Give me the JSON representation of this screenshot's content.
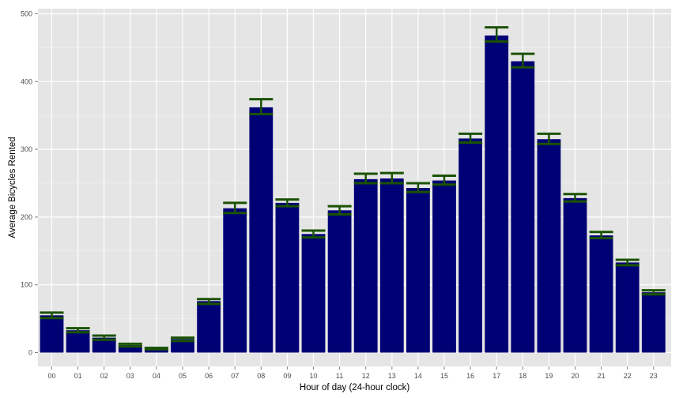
{
  "chart_data": {
    "type": "bar",
    "xlabel": "Hour of day (24-hour clock)",
    "ylabel": "Average Bicycles Rented",
    "ylim": [
      0,
      500
    ],
    "yticks": [
      0,
      100,
      200,
      300,
      400,
      500
    ],
    "categories": [
      "00",
      "01",
      "02",
      "03",
      "04",
      "05",
      "06",
      "07",
      "08",
      "09",
      "10",
      "11",
      "12",
      "13",
      "14",
      "15",
      "16",
      "17",
      "18",
      "19",
      "20",
      "21",
      "22",
      "23"
    ],
    "values": [
      55,
      33,
      22,
      11,
      6,
      20,
      76,
      213,
      362,
      221,
      175,
      210,
      256,
      257,
      243,
      254,
      316,
      468,
      430,
      315,
      228,
      173,
      133,
      89
    ],
    "error_low": [
      51,
      30,
      19,
      9,
      5,
      17,
      72,
      206,
      352,
      216,
      170,
      204,
      250,
      250,
      237,
      248,
      310,
      459,
      421,
      308,
      223,
      169,
      129,
      86
    ],
    "error_high": [
      59,
      36,
      25,
      13,
      7,
      22,
      79,
      221,
      374,
      226,
      180,
      216,
      264,
      265,
      250,
      261,
      323,
      480,
      441,
      323,
      234,
      178,
      137,
      92
    ],
    "colors": {
      "panel": "#e5e5e5",
      "grid_major": "#ffffff",
      "grid_minor": "#f2f2f2",
      "bar": "#000075",
      "errorbar": "#1a5200"
    },
    "grid": true,
    "legend": "none"
  }
}
